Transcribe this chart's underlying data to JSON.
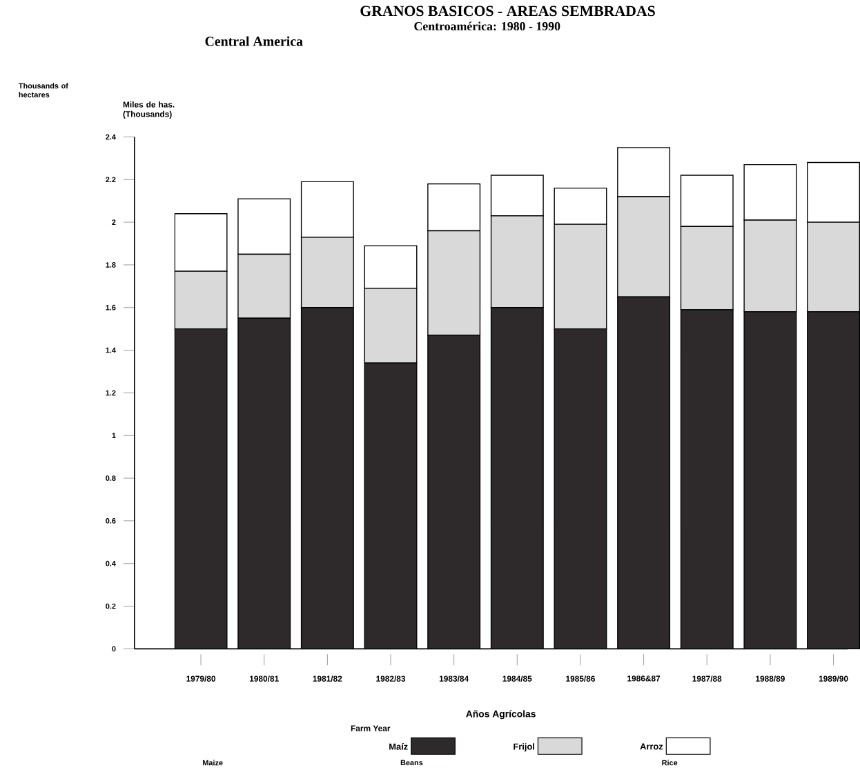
{
  "chart_data": {
    "type": "bar",
    "stacked": true,
    "title": "GRANOS BASICOS - AREAS SEMBRADAS",
    "subtitle": "Centroamérica: 1980 - 1990",
    "xlabel": "Años Agrícolas",
    "ylabel": "Miles de has. (Thousands)",
    "annotations": [
      "Central America",
      "Thousands of hectares",
      "Farm Year",
      "Maize",
      "Beans",
      "Rice"
    ],
    "categories": [
      "1979/80",
      "1980/81",
      "1981/82",
      "1982/83",
      "1983/84",
      "1984/85",
      "1985/86",
      "1986&87",
      "1987/88",
      "1988/89",
      "1989/90"
    ],
    "series": [
      {
        "name": "Maíz",
        "color": "#2e2a2c",
        "values": [
          1.5,
          1.55,
          1.6,
          1.34,
          1.47,
          1.6,
          1.5,
          1.65,
          1.59,
          1.58,
          1.58
        ]
      },
      {
        "name": "Frijol",
        "color": "#d9d9d9",
        "values": [
          0.27,
          0.3,
          0.33,
          0.35,
          0.49,
          0.43,
          0.49,
          0.47,
          0.39,
          0.43,
          0.42
        ]
      },
      {
        "name": "Arroz",
        "color": "#ffffff",
        "values": [
          0.27,
          0.26,
          0.26,
          0.2,
          0.22,
          0.19,
          0.17,
          0.23,
          0.24,
          0.26,
          0.28
        ]
      }
    ],
    "ylim": [
      0,
      2.4
    ],
    "yticks": [
      0,
      0.2,
      0.4,
      0.6,
      0.8,
      1,
      1.2,
      1.4,
      1.6,
      1.8,
      2,
      2.2,
      2.4
    ],
    "grid": false,
    "legend": "bottom"
  }
}
